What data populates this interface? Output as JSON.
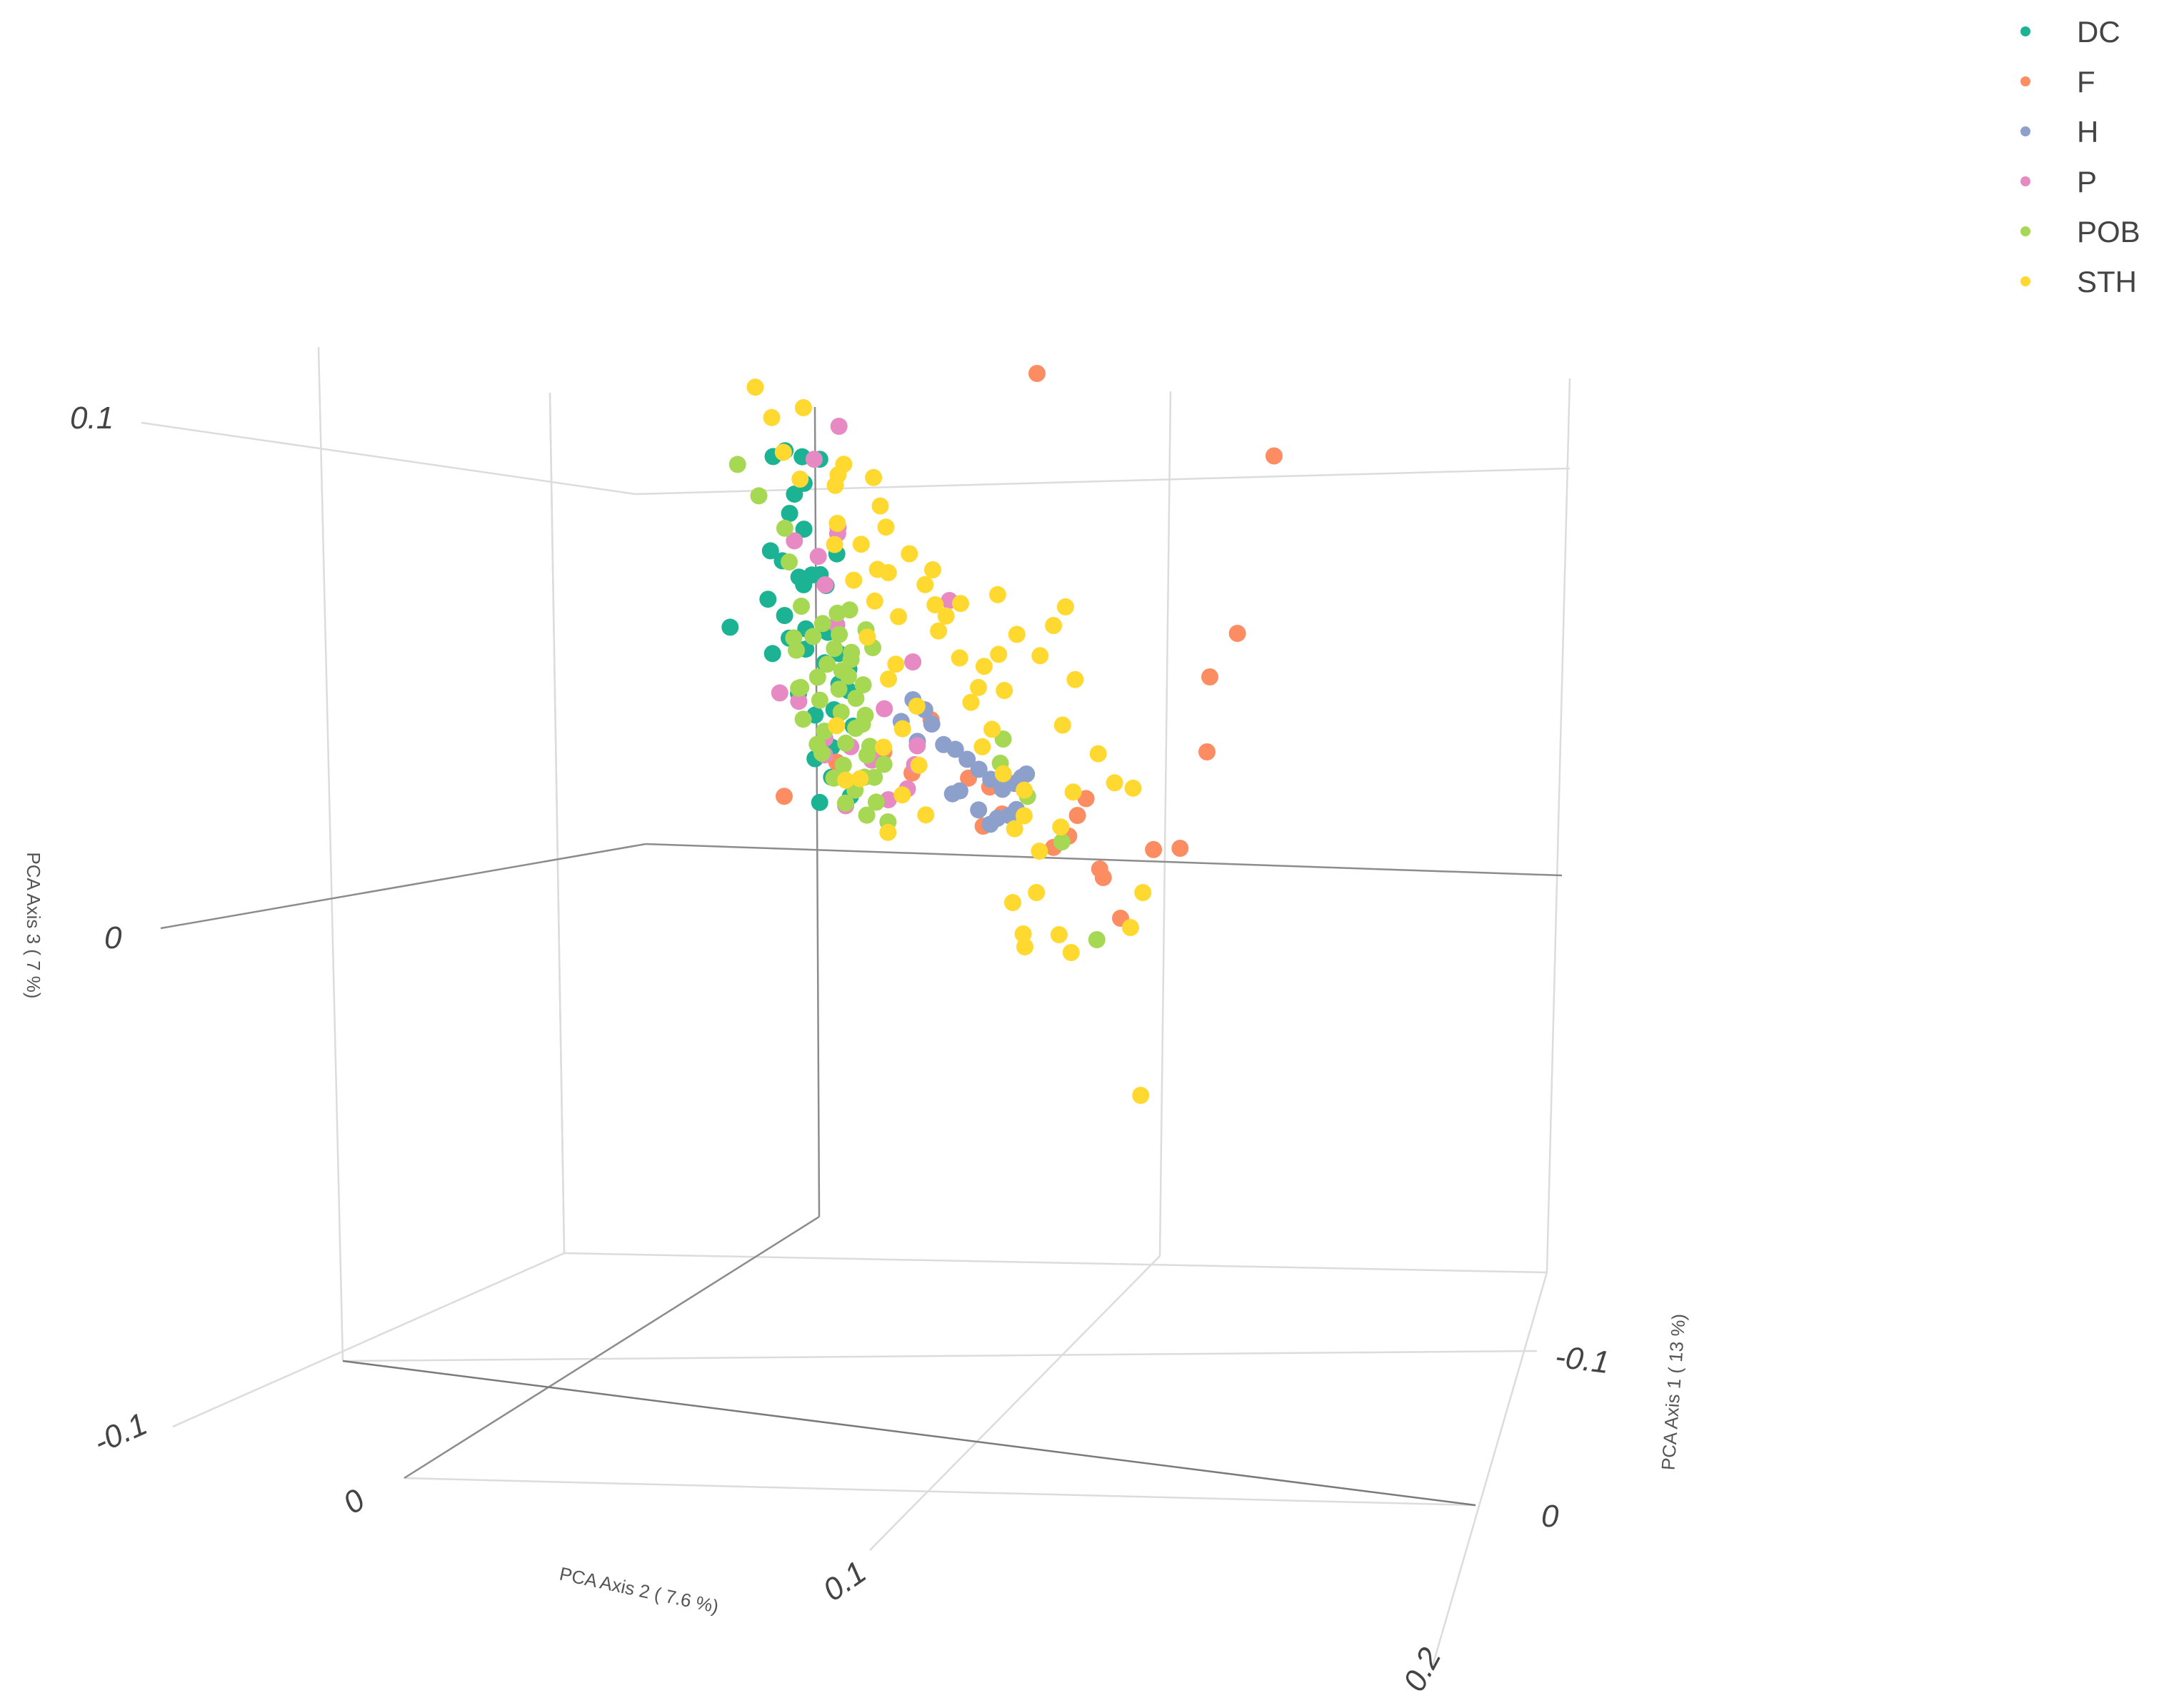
{
  "chart_data": {
    "type": "scatter",
    "dimensions": 3,
    "x_axis": {
      "label": "PCA Axis 1 ( 13 %)",
      "ticks": [
        "-0.1",
        "0"
      ]
    },
    "y_axis": {
      "label": "PCA Axis 2 ( 7.6 %)",
      "ticks": [
        "-0.1",
        "0",
        "0.1",
        "0.2"
      ]
    },
    "z_axis": {
      "label": "PCA Axis 3 ( 7 %)",
      "ticks": [
        "0.1",
        "0"
      ]
    },
    "legend_position": "top-right",
    "series": [
      {
        "name": "DC",
        "color": "#1bb394",
        "points": [
          [
            -0.045,
            -0.062,
            0.048
          ],
          [
            -0.046,
            -0.058,
            0.049
          ],
          [
            -0.047,
            -0.051,
            0.043
          ],
          [
            -0.048,
            -0.056,
            0.04
          ],
          [
            -0.05,
            -0.06,
            0.035
          ],
          [
            -0.051,
            -0.055,
            0.032
          ],
          [
            -0.052,
            -0.07,
            0.026
          ],
          [
            -0.053,
            -0.066,
            0.024
          ],
          [
            -0.054,
            -0.06,
            0.021
          ],
          [
            -0.055,
            -0.074,
            0.015
          ],
          [
            -0.056,
            -0.068,
            0.012
          ],
          [
            -0.057,
            -0.061,
            0.018
          ],
          [
            -0.058,
            -0.055,
            0.02
          ],
          [
            -0.059,
            -0.049,
            0.024
          ],
          [
            -0.06,
            -0.063,
            0.008
          ],
          [
            -0.061,
            -0.071,
            0.005
          ],
          [
            -0.062,
            -0.065,
            0.003
          ],
          [
            -0.064,
            -0.059,
            0.0
          ],
          [
            -0.065,
            -0.054,
            -0.004
          ],
          [
            -0.066,
            -0.072,
            -0.008
          ],
          [
            -0.067,
            -0.066,
            -0.012
          ],
          [
            -0.068,
            -0.06,
            -0.018
          ],
          [
            -0.07,
            -0.069,
            -0.022
          ],
          [
            -0.072,
            -0.064,
            -0.026
          ],
          [
            -0.074,
            -0.058,
            -0.03
          ],
          [
            -0.075,
            -0.072,
            -0.033
          ],
          [
            -0.04,
            -0.045,
            0.052
          ],
          [
            -0.04,
            -0.041,
            0.03
          ],
          [
            -0.041,
            -0.036,
            0.028
          ],
          [
            -0.05,
            -0.044,
            0.014
          ],
          [
            -0.055,
            -0.04,
            0.005
          ],
          [
            -0.06,
            -0.045,
            -0.002
          ],
          [
            -0.066,
            -0.049,
            -0.012
          ],
          [
            -0.03,
            -0.028,
            0.058
          ],
          [
            -0.03,
            -0.02,
            0.022
          ],
          [
            -0.032,
            -0.024,
            0.01
          ],
          [
            -0.045,
            -0.08,
            0.014
          ],
          [
            -0.06,
            -0.077,
            0.002
          ]
        ]
      },
      {
        "name": "F",
        "color": "#fc8d62",
        "points": [
          [
            0.02,
            0.205,
            0.105
          ],
          [
            0.0,
            0.09,
            0.1
          ],
          [
            0.02,
            0.19,
            0.07
          ],
          [
            0.01,
            0.17,
            0.055
          ],
          [
            0.0,
            0.16,
            0.035
          ],
          [
            -0.01,
            0.14,
            0.01
          ],
          [
            -0.02,
            0.12,
            0.003
          ],
          [
            -0.02,
            0.092,
            0.01
          ],
          [
            -0.03,
            0.09,
            -0.01
          ],
          [
            -0.04,
            0.07,
            -0.005
          ],
          [
            -0.04,
            0.06,
            -0.012
          ],
          [
            -0.05,
            0.07,
            -0.02
          ],
          [
            -0.05,
            0.057,
            -0.015
          ],
          [
            -0.03,
            0.04,
            -0.005
          ],
          [
            -0.05,
            0.015,
            -0.008
          ],
          [
            -0.052,
            0.022,
            -0.01
          ],
          [
            -0.07,
            0.06,
            -0.04
          ],
          [
            -0.07,
            0.01,
            -0.025
          ],
          [
            -0.07,
            -0.02,
            -0.01
          ],
          [
            -0.072,
            -0.03,
            -0.022
          ],
          [
            -0.07,
            -0.04,
            -0.018
          ],
          [
            -0.078,
            -0.09,
            -0.035
          ],
          [
            -0.06,
            -0.05,
            -0.016
          ]
        ]
      },
      {
        "name": "H",
        "color": "#8da0cb",
        "points": [
          [
            -0.06,
            -0.01,
            -0.005
          ],
          [
            -0.061,
            -0.006,
            -0.009
          ],
          [
            -0.062,
            -0.002,
            -0.01
          ],
          [
            -0.063,
            0.002,
            -0.012
          ],
          [
            -0.064,
            0.006,
            -0.014
          ],
          [
            -0.065,
            0.01,
            -0.016
          ],
          [
            -0.066,
            0.014,
            -0.018
          ],
          [
            -0.067,
            0.018,
            -0.017
          ],
          [
            -0.066,
            0.022,
            -0.015
          ],
          [
            -0.064,
            0.026,
            -0.013
          ],
          [
            -0.066,
            -0.004,
            -0.02
          ],
          [
            -0.068,
            -0.009,
            -0.022
          ],
          [
            -0.058,
            -0.016,
            0.0
          ],
          [
            -0.059,
            -0.012,
            -0.002
          ],
          [
            -0.057,
            -0.02,
            -0.004
          ],
          [
            -0.062,
            -0.018,
            -0.01
          ],
          [
            -0.068,
            0.002,
            -0.024
          ],
          [
            -0.07,
            0.008,
            -0.026
          ],
          [
            -0.07,
            0.013,
            -0.025
          ],
          [
            -0.069,
            0.017,
            -0.023
          ],
          [
            -0.071,
            0.004,
            -0.028
          ]
        ]
      },
      {
        "name": "P",
        "color": "#e78ac3",
        "points": [
          [
            -0.03,
            -0.02,
            0.065
          ],
          [
            -0.015,
            0.04,
            0.045
          ],
          [
            -0.04,
            -0.04,
            0.052
          ],
          [
            -0.04,
            -0.03,
            0.04
          ],
          [
            -0.045,
            -0.035,
            0.036
          ],
          [
            -0.05,
            -0.058,
            0.03
          ],
          [
            -0.05,
            -0.048,
            0.028
          ],
          [
            -0.055,
            -0.05,
            0.02
          ],
          [
            -0.06,
            -0.05,
            0.01
          ],
          [
            -0.06,
            -0.055,
            -0.012
          ],
          [
            -0.065,
            -0.06,
            -0.018
          ],
          [
            -0.066,
            -0.05,
            -0.016
          ],
          [
            -0.07,
            -0.045,
            -0.02
          ],
          [
            -0.064,
            -0.02,
            -0.012
          ],
          [
            -0.068,
            -0.025,
            -0.018
          ],
          [
            -0.07,
            -0.03,
            -0.024
          ],
          [
            -0.072,
            -0.04,
            -0.028
          ],
          [
            -0.06,
            -0.066,
            -0.006
          ],
          [
            -0.058,
            -0.072,
            -0.004
          ],
          [
            -0.074,
            -0.06,
            -0.032
          ],
          [
            -0.06,
            -0.018,
            0.006
          ],
          [
            -0.06,
            -0.03,
            -0.004
          ]
        ]
      },
      {
        "name": "POB",
        "color": "#a6d854",
        "points": [
          [
            -0.055,
            -0.06,
            0.015
          ],
          [
            -0.056,
            -0.052,
            0.012
          ],
          [
            -0.057,
            -0.046,
            0.01
          ],
          [
            -0.058,
            -0.058,
            0.008
          ],
          [
            -0.059,
            -0.05,
            0.006
          ],
          [
            -0.06,
            -0.044,
            0.004
          ],
          [
            -0.061,
            -0.068,
            0.003
          ],
          [
            -0.062,
            -0.056,
            0.001
          ],
          [
            -0.063,
            -0.048,
            -0.001
          ],
          [
            -0.064,
            -0.062,
            -0.003
          ],
          [
            -0.065,
            -0.054,
            -0.005
          ],
          [
            -0.066,
            -0.072,
            -0.007
          ],
          [
            -0.067,
            -0.064,
            -0.009
          ],
          [
            -0.068,
            -0.056,
            -0.011
          ],
          [
            -0.069,
            -0.048,
            -0.013
          ],
          [
            -0.07,
            -0.074,
            -0.015
          ],
          [
            -0.071,
            -0.066,
            -0.017
          ],
          [
            -0.072,
            -0.058,
            -0.019
          ],
          [
            -0.073,
            -0.05,
            -0.021
          ],
          [
            -0.074,
            -0.07,
            -0.023
          ],
          [
            -0.075,
            -0.062,
            -0.025
          ],
          [
            -0.076,
            -0.054,
            -0.027
          ],
          [
            -0.077,
            -0.068,
            -0.029
          ],
          [
            -0.078,
            -0.06,
            -0.031
          ],
          [
            -0.079,
            -0.052,
            -0.033
          ],
          [
            -0.08,
            -0.066,
            -0.035
          ],
          [
            -0.081,
            -0.058,
            -0.037
          ],
          [
            -0.082,
            -0.05,
            -0.038
          ],
          [
            -0.05,
            -0.04,
            0.018
          ],
          [
            -0.052,
            -0.036,
            0.01
          ],
          [
            -0.054,
            -0.042,
            0.005
          ],
          [
            -0.056,
            -0.035,
            0.002
          ],
          [
            -0.058,
            -0.04,
            -0.002
          ],
          [
            -0.06,
            -0.038,
            -0.006
          ],
          [
            -0.062,
            -0.044,
            -0.01
          ],
          [
            -0.064,
            -0.04,
            -0.014
          ],
          [
            -0.066,
            -0.036,
            -0.018
          ],
          [
            -0.068,
            -0.042,
            -0.022
          ],
          [
            -0.045,
            -0.03,
            0.022
          ],
          [
            -0.05,
            -0.028,
            0.016
          ],
          [
            -0.055,
            -0.03,
            0.01
          ],
          [
            -0.05,
            -0.062,
            0.032
          ],
          [
            -0.045,
            -0.068,
            0.04
          ],
          [
            -0.04,
            -0.072,
            0.048
          ],
          [
            -0.06,
            -0.07,
            0.02
          ],
          [
            -0.07,
            -0.078,
            0.0
          ],
          [
            -0.075,
            -0.08,
            -0.012
          ],
          [
            -0.08,
            -0.078,
            -0.025
          ],
          [
            -0.055,
            0.035,
            -0.012
          ],
          [
            -0.065,
            0.04,
            -0.025
          ],
          [
            -0.07,
            0.05,
            -0.045
          ],
          [
            -0.06,
            0.02,
            -0.005
          ],
          [
            -0.064,
            0.015,
            -0.012
          ]
        ]
      },
      {
        "name": "STH",
        "color": "#ffd92f",
        "points": [
          [
            -0.025,
            -0.03,
            0.07
          ],
          [
            -0.03,
            -0.018,
            0.058
          ],
          [
            -0.035,
            -0.048,
            0.055
          ],
          [
            -0.036,
            -0.042,
            0.05
          ],
          [
            -0.04,
            -0.03,
            0.05
          ],
          [
            -0.045,
            -0.036,
            0.045
          ],
          [
            -0.045,
            -0.02,
            0.048
          ],
          [
            -0.05,
            -0.04,
            0.035
          ],
          [
            -0.05,
            -0.03,
            0.032
          ],
          [
            -0.05,
            -0.022,
            0.04
          ],
          [
            -0.055,
            -0.046,
            0.028
          ],
          [
            -0.055,
            -0.038,
            0.022
          ],
          [
            -0.055,
            -0.028,
            0.025
          ],
          [
            -0.06,
            -0.034,
            0.016
          ],
          [
            -0.06,
            -0.024,
            0.014
          ],
          [
            -0.065,
            -0.042,
            0.006
          ],
          [
            -0.065,
            -0.03,
            0.002
          ],
          [
            -0.07,
            -0.038,
            -0.004
          ],
          [
            -0.07,
            -0.026,
            -0.008
          ],
          [
            -0.072,
            -0.034,
            -0.014
          ],
          [
            -0.075,
            -0.045,
            -0.02
          ],
          [
            -0.075,
            -0.03,
            -0.022
          ],
          [
            -0.078,
            -0.04,
            -0.03
          ],
          [
            -0.08,
            -0.032,
            -0.034
          ],
          [
            -0.082,
            -0.05,
            -0.04
          ],
          [
            -0.04,
            -0.01,
            0.042
          ],
          [
            -0.045,
            -0.005,
            0.035
          ],
          [
            -0.05,
            0.0,
            0.03
          ],
          [
            -0.055,
            -0.008,
            0.024
          ],
          [
            -0.06,
            -0.004,
            0.016
          ],
          [
            -0.065,
            -0.012,
            0.01
          ],
          [
            -0.068,
            -0.006,
            0.004
          ],
          [
            -0.07,
            0.0,
            -0.002
          ],
          [
            -0.075,
            -0.008,
            -0.008
          ],
          [
            -0.078,
            -0.002,
            -0.014
          ],
          [
            -0.082,
            -0.01,
            -0.02
          ],
          [
            -0.085,
            -0.004,
            -0.026
          ],
          [
            -0.088,
            0.002,
            -0.03
          ],
          [
            -0.09,
            0.0,
            -0.036
          ],
          [
            -0.092,
            -0.006,
            -0.04
          ],
          [
            -0.02,
            0.01,
            0.045
          ],
          [
            -0.02,
            0.04,
            0.042
          ],
          [
            -0.015,
            0.06,
            0.048
          ],
          [
            -0.03,
            0.02,
            0.035
          ],
          [
            -0.04,
            0.06,
            0.03
          ],
          [
            -0.04,
            0.065,
            0.034
          ],
          [
            -0.05,
            0.03,
            0.01
          ],
          [
            -0.055,
            0.055,
            0.012
          ],
          [
            -0.06,
            0.06,
            -0.004
          ],
          [
            -0.062,
            0.065,
            -0.01
          ],
          [
            -0.065,
            0.07,
            -0.012
          ],
          [
            -0.07,
            0.04,
            -0.018
          ],
          [
            -0.075,
            0.03,
            -0.028
          ],
          [
            -0.08,
            0.06,
            -0.04
          ],
          [
            -0.085,
            0.05,
            -0.05
          ],
          [
            -0.09,
            0.02,
            -0.06
          ],
          [
            -0.095,
            0.01,
            -0.06
          ],
          [
            -0.1,
            0.04,
            -0.09
          ],
          [
            -0.11,
            -0.02,
            -0.07
          ],
          [
            -0.08,
            0.01,
            -0.055
          ],
          [
            -0.085,
            0.0,
            -0.05
          ],
          [
            -0.083,
            0.012,
            -0.046
          ],
          [
            -0.076,
            0.02,
            -0.034
          ],
          [
            -0.06,
            0.012,
            0.008
          ],
          [
            -0.058,
            0.02,
            0.012
          ],
          [
            -0.045,
            0.04,
            0.024
          ],
          [
            -0.07,
            -0.05,
            -0.024
          ],
          [
            -0.065,
            -0.055,
            -0.012
          ],
          [
            -0.072,
            -0.058,
            -0.026
          ],
          [
            -0.06,
            0.045,
            0.0
          ],
          [
            -0.05,
            0.045,
            0.018
          ],
          [
            -0.03,
            -0.048,
            0.064
          ],
          [
            -0.025,
            -0.05,
            0.072
          ]
        ]
      }
    ]
  }
}
